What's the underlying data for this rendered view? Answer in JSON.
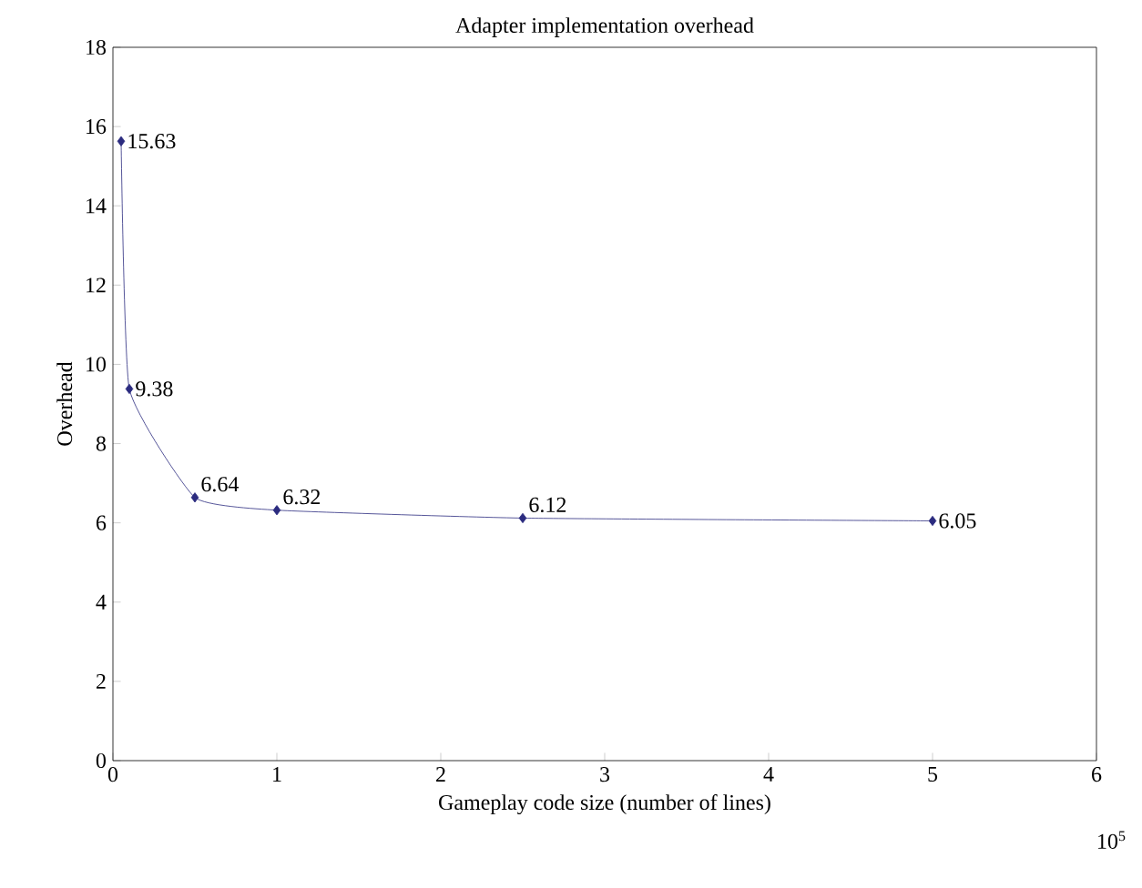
{
  "chart_data": {
    "type": "line",
    "title": "Adapter implementation overhead",
    "xlabel": "Gameplay code size (number of lines)",
    "ylabel": "Overhead",
    "x": [
      0.05,
      0.1,
      0.5,
      1,
      2.5,
      5
    ],
    "series": [
      {
        "color": "#2b2b7f",
        "values": [
          15.63,
          9.38,
          6.64,
          6.32,
          6.12,
          6.05
        ]
      }
    ],
    "xlim": [
      0,
      6
    ],
    "xticks": [
      0,
      1,
      2,
      3,
      4,
      5,
      6
    ],
    "ylim": [
      0,
      18
    ],
    "yticks": [
      0,
      2,
      4,
      6,
      8,
      10,
      12,
      14,
      16,
      18
    ],
    "annotations": [
      "10$^{5}$"
    ],
    "data_labels": true,
    "grid": false,
    "marker": "diamond",
    "line_style": "solid"
  }
}
